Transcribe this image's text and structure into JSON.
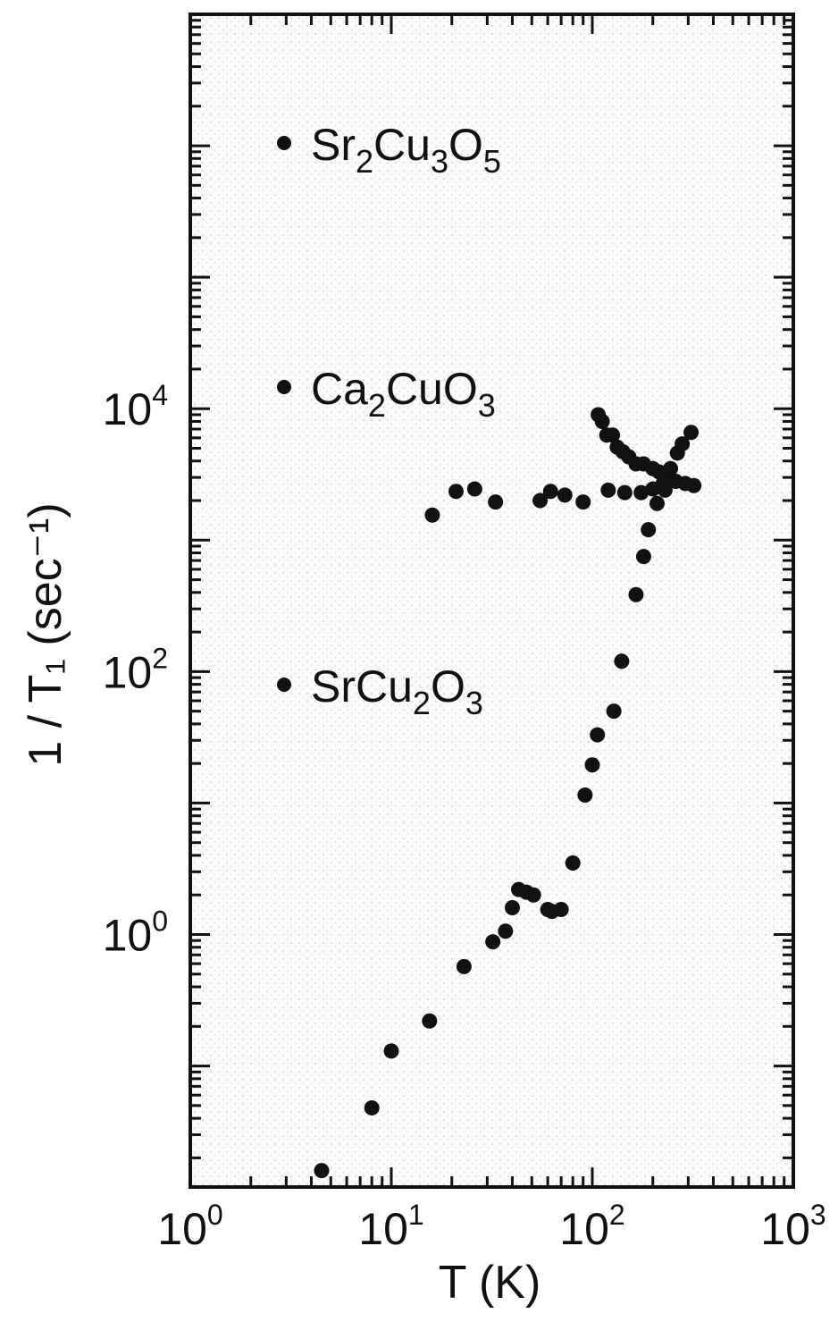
{
  "chart_data": {
    "type": "scatter",
    "title": "",
    "xlabel": "T (K)",
    "ylabel": "1 / T₁ (sec⁻¹)",
    "xscale": "log",
    "yscale": "log",
    "xlim": [
      1,
      1000
    ],
    "ylim": [
      0.012,
      10000000
    ],
    "grid": false,
    "legend_placement": "inside-left",
    "x_ticks": [
      {
        "value": 1,
        "base": "10",
        "exp": "0"
      },
      {
        "value": 10,
        "base": "10",
        "exp": "1"
      },
      {
        "value": 100,
        "base": "10",
        "exp": "2"
      },
      {
        "value": 1000,
        "base": "10",
        "exp": "3"
      }
    ],
    "y_ticks": [
      {
        "value": 1,
        "base": "10",
        "exp": "0"
      },
      {
        "value": 100,
        "base": "10",
        "exp": "2"
      },
      {
        "value": 10000,
        "base": "10",
        "exp": "4"
      }
    ],
    "legend": [
      {
        "parts": [
          [
            "Sr",
            "normal"
          ],
          [
            "2",
            "sub"
          ],
          [
            "Cu",
            "normal"
          ],
          [
            "3",
            "sub"
          ],
          [
            "O",
            "normal"
          ],
          [
            "5",
            "sub"
          ]
        ]
      },
      {
        "parts": [
          [
            "Ca",
            "normal"
          ],
          [
            "2",
            "sub"
          ],
          [
            "CuO",
            "normal"
          ],
          [
            "3",
            "sub"
          ]
        ]
      },
      {
        "parts": [
          [
            "SrCu",
            "normal"
          ],
          [
            "2",
            "sub"
          ],
          [
            "O",
            "normal"
          ],
          [
            "3",
            "sub"
          ]
        ]
      }
    ],
    "series": [
      {
        "points": [
          [
            107,
            9000
          ],
          [
            112,
            8000
          ],
          [
            118,
            6300
          ],
          [
            126,
            6300
          ],
          [
            133,
            5100
          ],
          [
            142,
            4700
          ],
          [
            152,
            4300
          ],
          [
            165,
            3800
          ],
          [
            180,
            3800
          ],
          [
            200,
            3500
          ],
          [
            215,
            3300
          ],
          [
            235,
            3100
          ],
          [
            260,
            2800
          ],
          [
            290,
            2700
          ],
          [
            320,
            2600
          ]
        ]
      },
      {
        "points": [
          [
            16,
            1550
          ],
          [
            21,
            2350
          ],
          [
            26,
            2450
          ],
          [
            33,
            1950
          ],
          [
            55,
            2000
          ],
          [
            62,
            2350
          ],
          [
            73,
            2200
          ],
          [
            90,
            1950
          ],
          [
            120,
            2400
          ],
          [
            145,
            2300
          ],
          [
            175,
            2300
          ],
          [
            200,
            2450
          ],
          [
            230,
            2400
          ]
        ]
      },
      {
        "points": [
          [
            4.5,
            0.016
          ],
          [
            8,
            0.048
          ],
          [
            10,
            0.13
          ],
          [
            15.5,
            0.22
          ],
          [
            23,
            0.57
          ],
          [
            32,
            0.88
          ],
          [
            37,
            1.06
          ],
          [
            40,
            1.6
          ],
          [
            43,
            2.2
          ],
          [
            47,
            2.1
          ],
          [
            51,
            2.0
          ],
          [
            60,
            1.55
          ],
          [
            63,
            1.5
          ],
          [
            70,
            1.55
          ],
          [
            80,
            3.5
          ],
          [
            92,
            11.5
          ],
          [
            100,
            19.5
          ],
          [
            106,
            33
          ],
          [
            128,
            50
          ],
          [
            140,
            120
          ],
          [
            165,
            385
          ],
          [
            180,
            750
          ],
          [
            190,
            1200
          ],
          [
            210,
            1900
          ],
          [
            225,
            2700
          ],
          [
            245,
            3500
          ],
          [
            265,
            4600
          ],
          [
            280,
            5400
          ],
          [
            310,
            6600
          ]
        ]
      }
    ]
  }
}
